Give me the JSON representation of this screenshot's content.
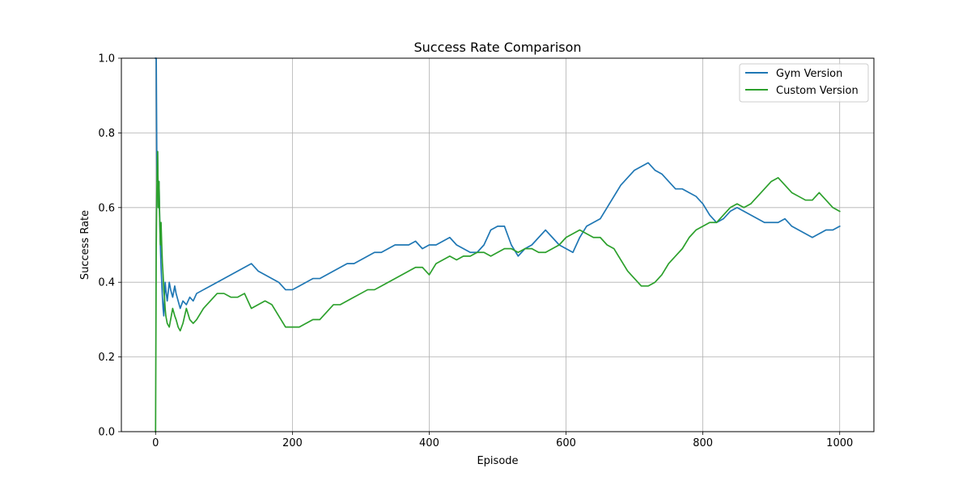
{
  "chart_data": {
    "type": "line",
    "title": "Success Rate Comparison",
    "xlabel": "Episode",
    "ylabel": "Success Rate",
    "xlim": [
      -50,
      1050
    ],
    "ylim": [
      0.0,
      1.0
    ],
    "x_ticks": [
      0,
      200,
      400,
      600,
      800,
      1000
    ],
    "x_tick_labels": [
      "0",
      "200",
      "400",
      "600",
      "800",
      "1000"
    ],
    "y_ticks": [
      0.0,
      0.2,
      0.4,
      0.6,
      0.8,
      1.0
    ],
    "y_tick_labels": [
      "0.0",
      "0.2",
      "0.4",
      "0.6",
      "0.8",
      "1.0"
    ],
    "grid": true,
    "legend_position": "top-right",
    "series": [
      {
        "name": "Gym Version",
        "color": "#1f77b4",
        "points": [
          [
            0,
            1.0
          ],
          [
            1,
            1.0
          ],
          [
            2,
            0.67
          ],
          [
            3,
            0.75
          ],
          [
            4,
            0.6
          ],
          [
            5,
            0.67
          ],
          [
            6,
            0.57
          ],
          [
            7,
            0.5
          ],
          [
            8,
            0.44
          ],
          [
            9,
            0.4
          ],
          [
            10,
            0.36
          ],
          [
            11,
            0.33
          ],
          [
            12,
            0.31
          ],
          [
            13,
            0.36
          ],
          [
            14,
            0.4
          ],
          [
            15,
            0.38
          ],
          [
            17,
            0.35
          ],
          [
            20,
            0.4
          ],
          [
            22,
            0.38
          ],
          [
            25,
            0.36
          ],
          [
            28,
            0.39
          ],
          [
            30,
            0.37
          ],
          [
            33,
            0.35
          ],
          [
            36,
            0.33
          ],
          [
            40,
            0.35
          ],
          [
            45,
            0.34
          ],
          [
            50,
            0.36
          ],
          [
            55,
            0.35
          ],
          [
            60,
            0.37
          ],
          [
            70,
            0.38
          ],
          [
            80,
            0.39
          ],
          [
            90,
            0.4
          ],
          [
            100,
            0.41
          ],
          [
            110,
            0.42
          ],
          [
            120,
            0.43
          ],
          [
            130,
            0.44
          ],
          [
            140,
            0.45
          ],
          [
            150,
            0.43
          ],
          [
            160,
            0.42
          ],
          [
            170,
            0.41
          ],
          [
            180,
            0.4
          ],
          [
            190,
            0.38
          ],
          [
            200,
            0.38
          ],
          [
            210,
            0.39
          ],
          [
            220,
            0.4
          ],
          [
            230,
            0.41
          ],
          [
            240,
            0.41
          ],
          [
            250,
            0.42
          ],
          [
            260,
            0.43
          ],
          [
            270,
            0.44
          ],
          [
            280,
            0.45
          ],
          [
            290,
            0.45
          ],
          [
            300,
            0.46
          ],
          [
            310,
            0.47
          ],
          [
            320,
            0.48
          ],
          [
            330,
            0.48
          ],
          [
            340,
            0.49
          ],
          [
            350,
            0.5
          ],
          [
            360,
            0.5
          ],
          [
            370,
            0.5
          ],
          [
            380,
            0.51
          ],
          [
            390,
            0.49
          ],
          [
            400,
            0.5
          ],
          [
            410,
            0.5
          ],
          [
            420,
            0.51
          ],
          [
            430,
            0.52
          ],
          [
            440,
            0.5
          ],
          [
            450,
            0.49
          ],
          [
            460,
            0.48
          ],
          [
            470,
            0.48
          ],
          [
            480,
            0.5
          ],
          [
            490,
            0.54
          ],
          [
            500,
            0.55
          ],
          [
            510,
            0.55
          ],
          [
            520,
            0.5
          ],
          [
            530,
            0.47
          ],
          [
            540,
            0.49
          ],
          [
            550,
            0.5
          ],
          [
            560,
            0.52
          ],
          [
            570,
            0.54
          ],
          [
            580,
            0.52
          ],
          [
            590,
            0.5
          ],
          [
            600,
            0.49
          ],
          [
            610,
            0.48
          ],
          [
            620,
            0.52
          ],
          [
            630,
            0.55
          ],
          [
            640,
            0.56
          ],
          [
            650,
            0.57
          ],
          [
            660,
            0.6
          ],
          [
            670,
            0.63
          ],
          [
            680,
            0.66
          ],
          [
            690,
            0.68
          ],
          [
            700,
            0.7
          ],
          [
            710,
            0.71
          ],
          [
            720,
            0.72
          ],
          [
            730,
            0.7
          ],
          [
            740,
            0.69
          ],
          [
            750,
            0.67
          ],
          [
            760,
            0.65
          ],
          [
            770,
            0.65
          ],
          [
            780,
            0.64
          ],
          [
            790,
            0.63
          ],
          [
            800,
            0.61
          ],
          [
            810,
            0.58
          ],
          [
            820,
            0.56
          ],
          [
            830,
            0.57
          ],
          [
            840,
            0.59
          ],
          [
            850,
            0.6
          ],
          [
            860,
            0.59
          ],
          [
            870,
            0.58
          ],
          [
            880,
            0.57
          ],
          [
            890,
            0.56
          ],
          [
            900,
            0.56
          ],
          [
            910,
            0.56
          ],
          [
            920,
            0.57
          ],
          [
            930,
            0.55
          ],
          [
            940,
            0.54
          ],
          [
            950,
            0.53
          ],
          [
            960,
            0.52
          ],
          [
            970,
            0.53
          ],
          [
            980,
            0.54
          ],
          [
            990,
            0.54
          ],
          [
            1000,
            0.55
          ]
        ]
      },
      {
        "name": "Custom Version",
        "color": "#2ca02c",
        "points": [
          [
            0,
            0.0
          ],
          [
            1,
            0.5
          ],
          [
            2,
            0.67
          ],
          [
            3,
            0.75
          ],
          [
            4,
            0.6
          ],
          [
            5,
            0.67
          ],
          [
            6,
            0.57
          ],
          [
            7,
            0.5
          ],
          [
            8,
            0.56
          ],
          [
            9,
            0.5
          ],
          [
            10,
            0.45
          ],
          [
            11,
            0.42
          ],
          [
            12,
            0.38
          ],
          [
            13,
            0.36
          ],
          [
            14,
            0.33
          ],
          [
            15,
            0.31
          ],
          [
            17,
            0.29
          ],
          [
            20,
            0.28
          ],
          [
            22,
            0.3
          ],
          [
            25,
            0.33
          ],
          [
            28,
            0.31
          ],
          [
            30,
            0.3
          ],
          [
            33,
            0.28
          ],
          [
            36,
            0.27
          ],
          [
            40,
            0.29
          ],
          [
            45,
            0.33
          ],
          [
            50,
            0.3
          ],
          [
            55,
            0.29
          ],
          [
            60,
            0.3
          ],
          [
            70,
            0.33
          ],
          [
            80,
            0.35
          ],
          [
            90,
            0.37
          ],
          [
            100,
            0.37
          ],
          [
            110,
            0.36
          ],
          [
            120,
            0.36
          ],
          [
            130,
            0.37
          ],
          [
            140,
            0.33
          ],
          [
            150,
            0.34
          ],
          [
            160,
            0.35
          ],
          [
            170,
            0.34
          ],
          [
            180,
            0.31
          ],
          [
            190,
            0.28
          ],
          [
            200,
            0.28
          ],
          [
            210,
            0.28
          ],
          [
            220,
            0.29
          ],
          [
            230,
            0.3
          ],
          [
            240,
            0.3
          ],
          [
            250,
            0.32
          ],
          [
            260,
            0.34
          ],
          [
            270,
            0.34
          ],
          [
            280,
            0.35
          ],
          [
            290,
            0.36
          ],
          [
            300,
            0.37
          ],
          [
            310,
            0.38
          ],
          [
            320,
            0.38
          ],
          [
            330,
            0.39
          ],
          [
            340,
            0.4
          ],
          [
            350,
            0.41
          ],
          [
            360,
            0.42
          ],
          [
            370,
            0.43
          ],
          [
            380,
            0.44
          ],
          [
            390,
            0.44
          ],
          [
            400,
            0.42
          ],
          [
            410,
            0.45
          ],
          [
            420,
            0.46
          ],
          [
            430,
            0.47
          ],
          [
            440,
            0.46
          ],
          [
            450,
            0.47
          ],
          [
            460,
            0.47
          ],
          [
            470,
            0.48
          ],
          [
            480,
            0.48
          ],
          [
            490,
            0.47
          ],
          [
            500,
            0.48
          ],
          [
            510,
            0.49
          ],
          [
            520,
            0.49
          ],
          [
            530,
            0.48
          ],
          [
            540,
            0.49
          ],
          [
            550,
            0.49
          ],
          [
            560,
            0.48
          ],
          [
            570,
            0.48
          ],
          [
            580,
            0.49
          ],
          [
            590,
            0.5
          ],
          [
            600,
            0.52
          ],
          [
            610,
            0.53
          ],
          [
            620,
            0.54
          ],
          [
            630,
            0.53
          ],
          [
            640,
            0.52
          ],
          [
            650,
            0.52
          ],
          [
            660,
            0.5
          ],
          [
            670,
            0.49
          ],
          [
            680,
            0.46
          ],
          [
            690,
            0.43
          ],
          [
            700,
            0.41
          ],
          [
            710,
            0.39
          ],
          [
            720,
            0.39
          ],
          [
            730,
            0.4
          ],
          [
            740,
            0.42
          ],
          [
            750,
            0.45
          ],
          [
            760,
            0.47
          ],
          [
            770,
            0.49
          ],
          [
            780,
            0.52
          ],
          [
            790,
            0.54
          ],
          [
            800,
            0.55
          ],
          [
            810,
            0.56
          ],
          [
            820,
            0.56
          ],
          [
            830,
            0.58
          ],
          [
            840,
            0.6
          ],
          [
            850,
            0.61
          ],
          [
            860,
            0.6
          ],
          [
            870,
            0.61
          ],
          [
            880,
            0.63
          ],
          [
            890,
            0.65
          ],
          [
            900,
            0.67
          ],
          [
            910,
            0.68
          ],
          [
            920,
            0.66
          ],
          [
            930,
            0.64
          ],
          [
            940,
            0.63
          ],
          [
            950,
            0.62
          ],
          [
            960,
            0.62
          ],
          [
            970,
            0.64
          ],
          [
            980,
            0.62
          ],
          [
            990,
            0.6
          ],
          [
            1000,
            0.59
          ]
        ]
      }
    ]
  }
}
